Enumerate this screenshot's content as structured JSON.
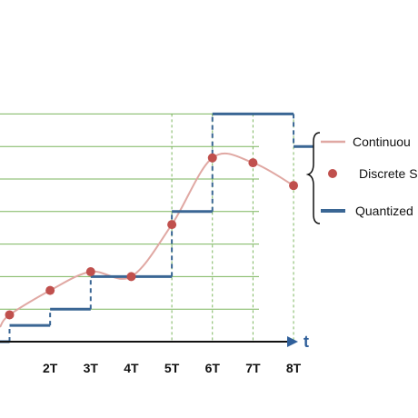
{
  "colors": {
    "continuous": "#e0a8a3",
    "sample": "#c0504d",
    "quantized": "#3a6694",
    "grid": "#7bb55d",
    "axis": "#111111",
    "axis_label": "#2f5f9a"
  },
  "axis": {
    "label": "t",
    "tick_labels": [
      "2T",
      "3T",
      "4T",
      "5T",
      "6T",
      "7T",
      "8T"
    ]
  },
  "legend": {
    "continuous": "Continuou",
    "discrete": "Discrete S",
    "quantized": "Quantized"
  },
  "chart_data": {
    "type": "line",
    "x_ticks": [
      2,
      3,
      4,
      5,
      6,
      7,
      8
    ],
    "samples": [
      {
        "x": 1.0,
        "level": 1.65
      },
      {
        "x": 2.0,
        "level": 3.15
      },
      {
        "x": 3.0,
        "level": 4.3
      },
      {
        "x": 4.0,
        "level": 4.0
      },
      {
        "x": 5.0,
        "level": 7.2
      },
      {
        "x": 6.0,
        "level": 11.3
      },
      {
        "x": 7.0,
        "level": 11.0
      },
      {
        "x": 8.0,
        "level": 9.6
      }
    ],
    "quantized_steps": [
      {
        "x_start": 0.0,
        "x_end": 1.0,
        "level": 0
      },
      {
        "x_start": 1.0,
        "x_end": 2.0,
        "level": 1
      },
      {
        "x_start": 2.0,
        "x_end": 3.0,
        "level": 2
      },
      {
        "x_start": 3.0,
        "x_end": 5.0,
        "level": 4
      },
      {
        "x_start": 5.0,
        "x_end": 6.0,
        "level": 8
      },
      {
        "x_start": 6.0,
        "x_end": 8.0,
        "level": 14
      },
      {
        "x_start": 8.0,
        "x_end": 8.5,
        "level": 12
      }
    ],
    "grid_levels": [
      2,
      4,
      6,
      8,
      10,
      12,
      14
    ],
    "vertical_guides": [
      5,
      6,
      7,
      8
    ]
  }
}
